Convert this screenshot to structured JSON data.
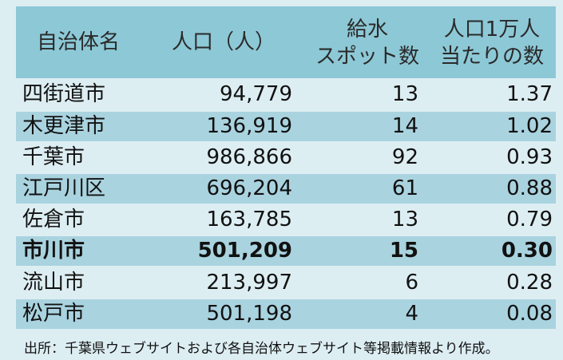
{
  "header": {
    "name": "自治体名",
    "population": "人口（人）",
    "spots_line1": "給水",
    "spots_line2": "スポット数",
    "ratio_line1": "人口1万人",
    "ratio_line2": "当たりの数"
  },
  "rows": [
    {
      "name": "四街道市",
      "population": "94,779",
      "spots": "13",
      "ratio": "1.37"
    },
    {
      "name": "木更津市",
      "population": "136,919",
      "spots": "14",
      "ratio": "1.02"
    },
    {
      "name": "千葉市",
      "population": "986,866",
      "spots": "92",
      "ratio": "0.93"
    },
    {
      "name": "江戸川区",
      "population": "696,204",
      "spots": "61",
      "ratio": "0.88"
    },
    {
      "name": "佐倉市",
      "population": "163,785",
      "spots": "13",
      "ratio": "0.79"
    },
    {
      "name": "市川市",
      "population": "501,209",
      "spots": "15",
      "ratio": "0.30"
    },
    {
      "name": "流山市",
      "population": "213,997",
      "spots": "6",
      "ratio": "0.28"
    },
    {
      "name": "松戸市",
      "population": "501,198",
      "spots": "4",
      "ratio": "0.08"
    }
  ],
  "source": "出所：千葉県ウェブサイトおよび各自治体ウェブサイト等掲載情報より作成。"
}
